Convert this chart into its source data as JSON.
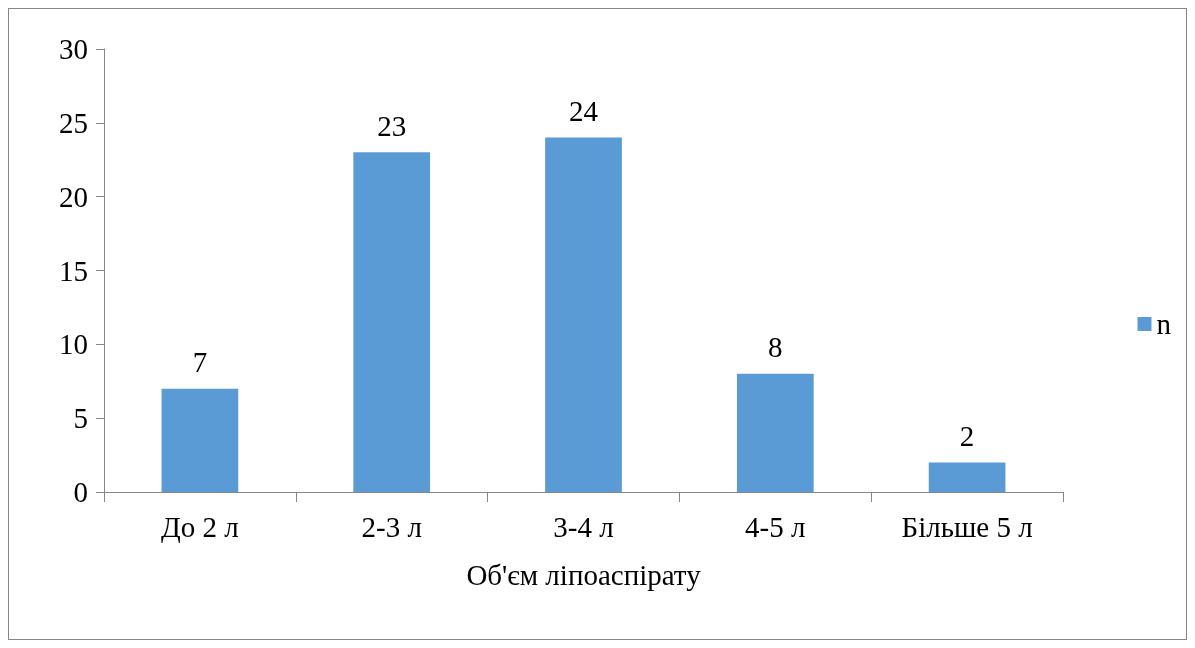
{
  "chart_data": {
    "type": "bar",
    "xlabel": "Об'єм ліпоаспірату",
    "categories": [
      "До 2 л",
      "2-3 л",
      "3-4 л",
      "4-5 л",
      "Більше 5 л"
    ],
    "series": [
      {
        "name": "n",
        "color": "#5b9bd5",
        "values": [
          7,
          23,
          24,
          8,
          2
        ]
      }
    ],
    "ylim": [
      0,
      30
    ],
    "yticks": [
      0,
      5,
      10,
      15,
      20,
      25,
      30
    ],
    "grid": false,
    "legend": "right",
    "data_labels": true
  }
}
